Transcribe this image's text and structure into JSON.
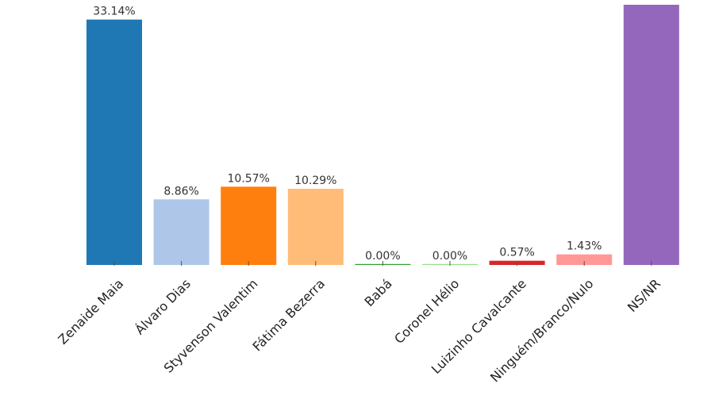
{
  "chart_data": {
    "type": "bar",
    "categories": [
      "Zenaide Maia",
      "Álvaro Dias",
      "Styvenson Valentim",
      "Fátima Bezerra",
      "Babá",
      "Coronel Hélio",
      "Luizinho Cavalcante",
      "Ninguém/Branco/Nulo",
      "NS/NR"
    ],
    "values": [
      33.14,
      8.86,
      10.57,
      10.29,
      0.0,
      0.0,
      0.57,
      1.43,
      35.14
    ],
    "value_labels": [
      "33.14%",
      "8.86%",
      "10.57%",
      "10.29%",
      "0.00%",
      "0.00%",
      "0.57%",
      "1.43%",
      ""
    ],
    "colors": [
      "#1f77b4",
      "#aec7e8",
      "#ff7f0e",
      "#ffbb78",
      "#2ca02c",
      "#98df8a",
      "#d62728",
      "#ff9896",
      "#9467bd"
    ],
    "ylim": [
      0,
      35.14
    ],
    "grid": false,
    "legend": "none"
  }
}
